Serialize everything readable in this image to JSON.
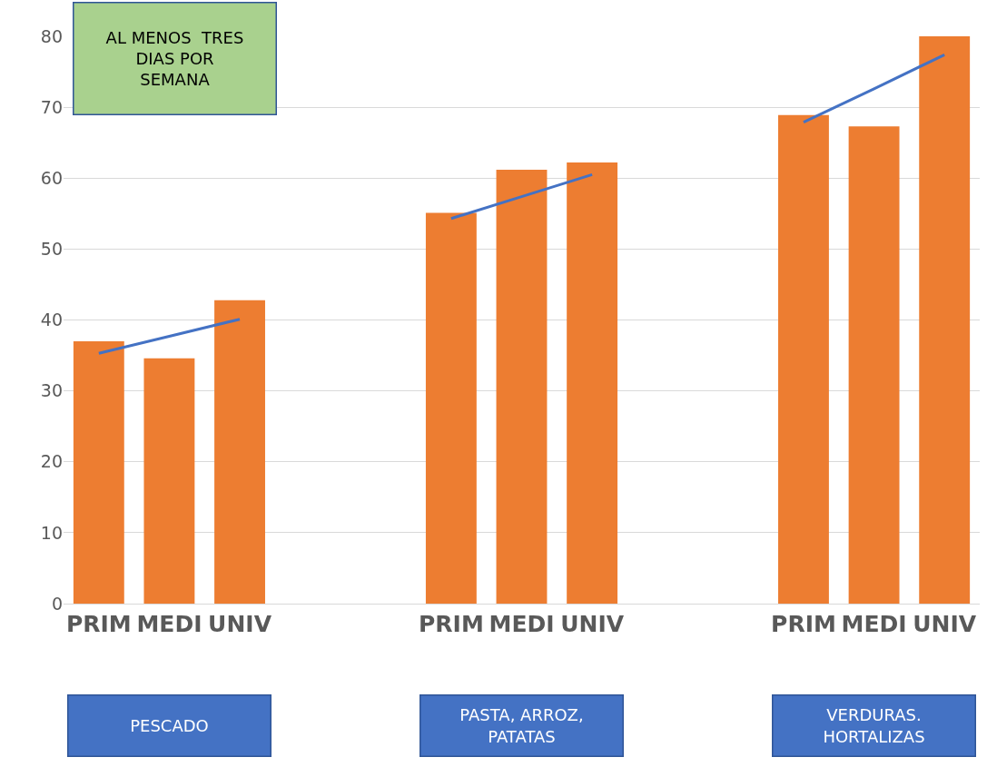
{
  "chart_data": {
    "type": "bar",
    "title": "AL MENOS  TRES\nDIAS POR\nSEMANA",
    "categories": [
      "PRIM",
      "MEDI",
      "UNIV",
      null,
      null,
      "PRIM",
      "MEDI",
      "UNIV",
      null,
      null,
      "PRIM",
      "MEDI",
      "UNIV"
    ],
    "series": [
      {
        "color": "#ed7d31",
        "values": [
          37,
          34.6,
          42.8,
          null,
          null,
          55.1,
          61.2,
          62.2,
          null,
          null,
          68.9,
          67.3,
          80
        ]
      },
      {
        "type": "line",
        "color": "#4472c4",
        "values": [
          35.3,
          37.7,
          40.1,
          null,
          null,
          null,
          null,
          null,
          null,
          null,
          null,
          null,
          null
        ]
      },
      {
        "type": "line",
        "color": "#4472c4",
        "values": [
          null,
          null,
          null,
          null,
          null,
          54.3,
          57.4,
          60.5,
          null,
          null,
          null,
          null,
          null
        ]
      },
      {
        "type": "line",
        "color": "#4472c4",
        "values": [
          null,
          null,
          null,
          null,
          null,
          null,
          null,
          null,
          null,
          null,
          67.9,
          72.6,
          77.4
        ]
      }
    ],
    "annotations": [
      "PESCADO",
      "PASTA, ARROZ,\nPATATAS",
      "VERDURAS.\nHORTALIZAS"
    ],
    "ylim": [
      0,
      80
    ],
    "yticks": [
      0,
      10,
      20,
      30,
      40,
      50,
      60,
      70,
      80
    ],
    "grid": "y",
    "marker": "none",
    "line_style": "solid"
  }
}
